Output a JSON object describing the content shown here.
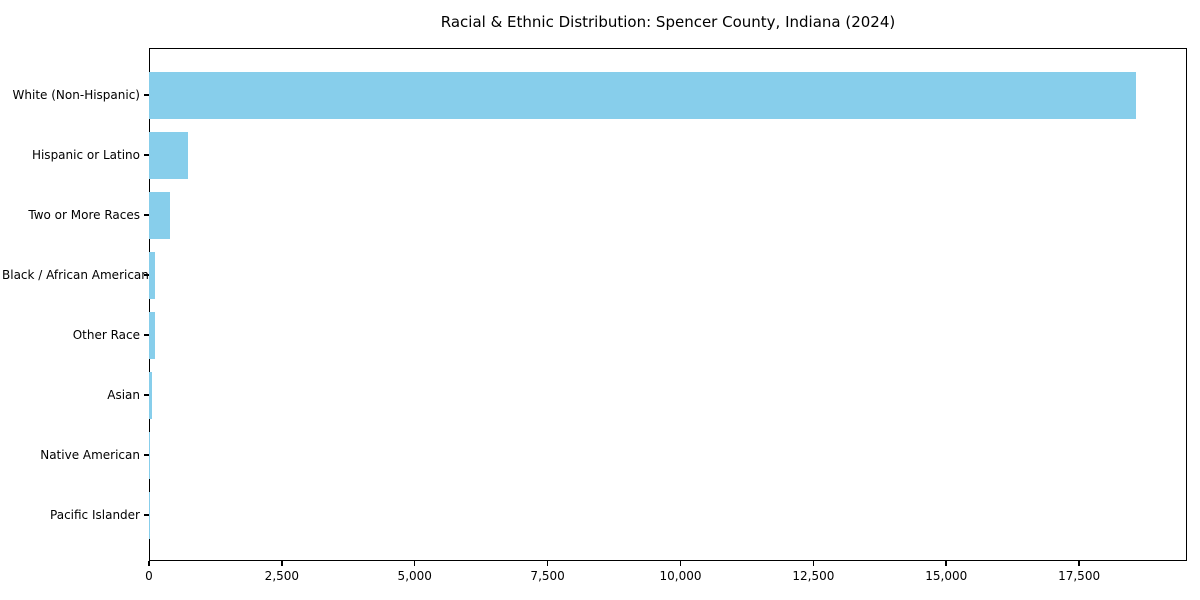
{
  "figure": {
    "background": "#ffffff"
  },
  "chart_data": {
    "type": "bar",
    "orientation": "horizontal",
    "title": "Racial & Ethnic Distribution: Spencer County, Indiana (2024)",
    "categories": [
      "White (Non-Hispanic)",
      "Hispanic or Latino",
      "Two or More Races",
      "Black / African American",
      "Other Race",
      "Asian",
      "Native American",
      "Pacific Islander"
    ],
    "values": [
      18570,
      740,
      390,
      120,
      115,
      60,
      15,
      5
    ],
    "xlabel": "",
    "ylabel": "",
    "xlim": [
      0,
      19530
    ],
    "xticks": {
      "values": [
        0,
        2500,
        5000,
        7500,
        10000,
        12500,
        15000,
        17500
      ],
      "labels": [
        "0",
        "2,500",
        "5,000",
        "7,500",
        "10,000",
        "12,500",
        "15,000",
        "17,500"
      ]
    },
    "bar_color": "#87ceeb",
    "axis_color": "#000000",
    "text_color": "#000000",
    "grid": false,
    "legend": null
  }
}
